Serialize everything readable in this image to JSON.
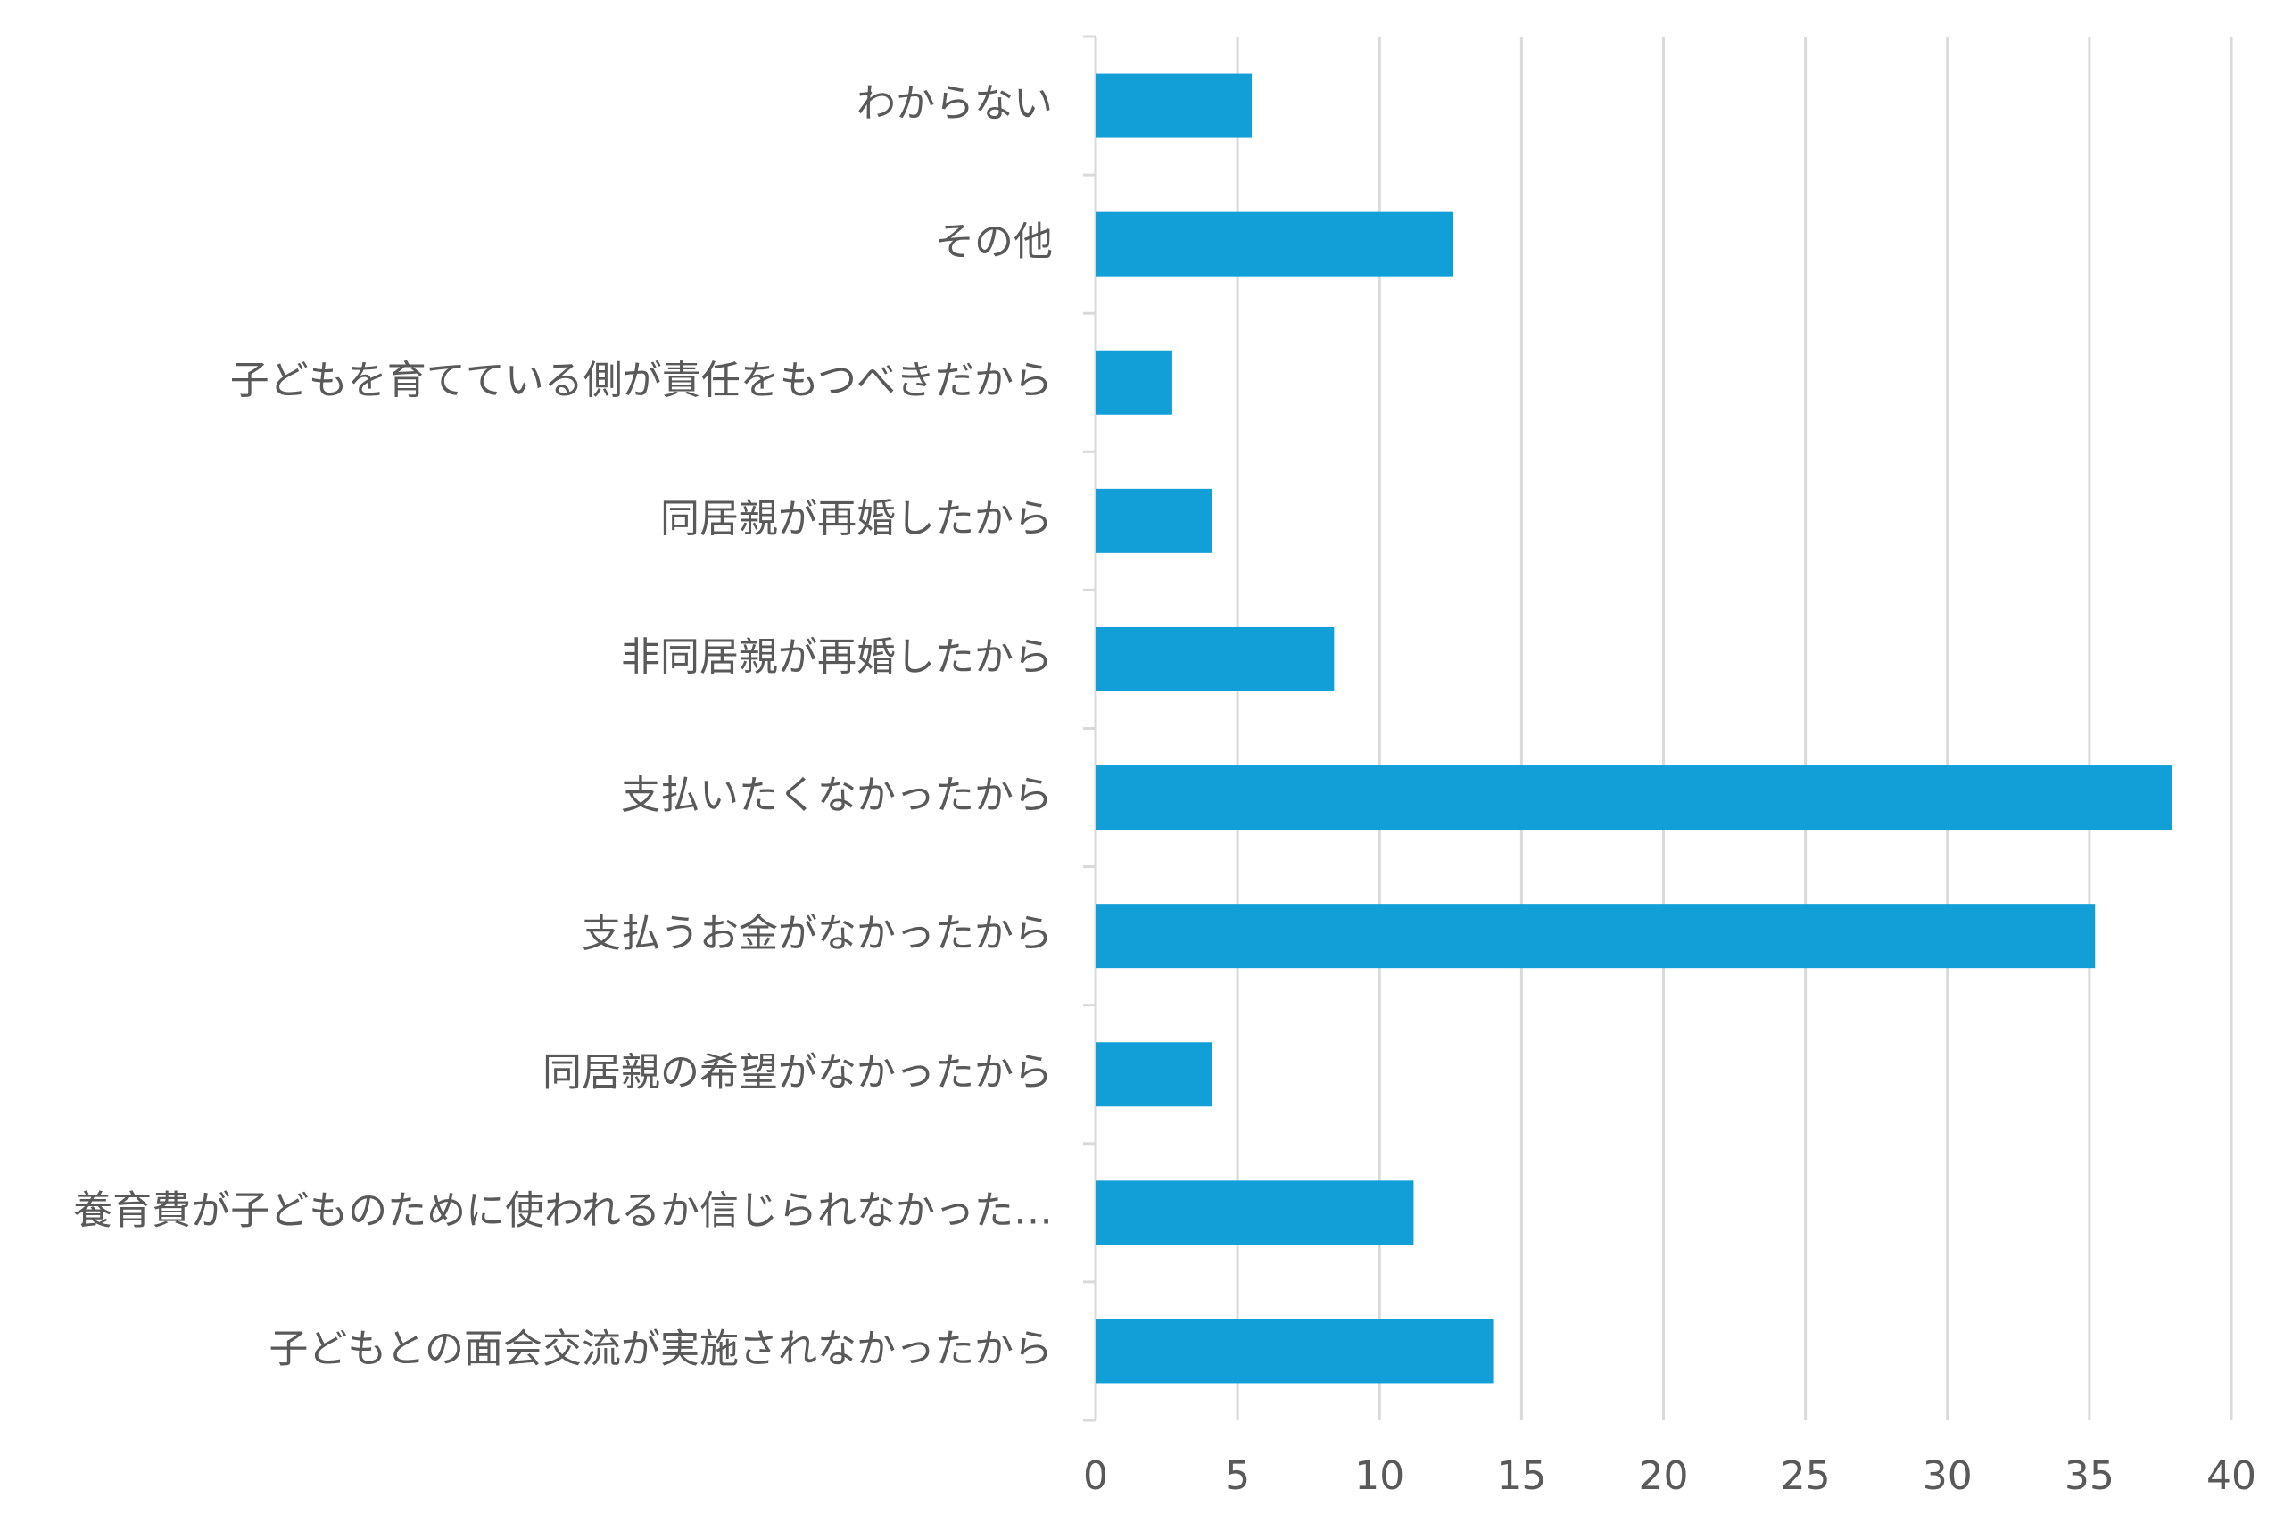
{
  "chart_data": {
    "type": "barh",
    "categories": [
      "わからない",
      "その他",
      "子どもを育てている側が責任をもつべきだから",
      "同居親が再婚したから",
      "非同居親が再婚したから",
      "支払いたくなかったから",
      "支払うお金がなかったから",
      "同居親の希望がなかったから",
      "養育費が子どものために使われるか信じられなかった…",
      "子どもとの面会交流が実施されなかったから"
    ],
    "values": [
      5.5,
      12.6,
      2.7,
      4.1,
      8.4,
      37.9,
      35.2,
      4.1,
      11.2,
      14.0
    ],
    "color": "#129fd8",
    "xlim": [
      0,
      40
    ],
    "xticks": [
      0,
      5,
      10,
      15,
      20,
      25,
      30,
      35,
      40
    ],
    "grid": true
  }
}
